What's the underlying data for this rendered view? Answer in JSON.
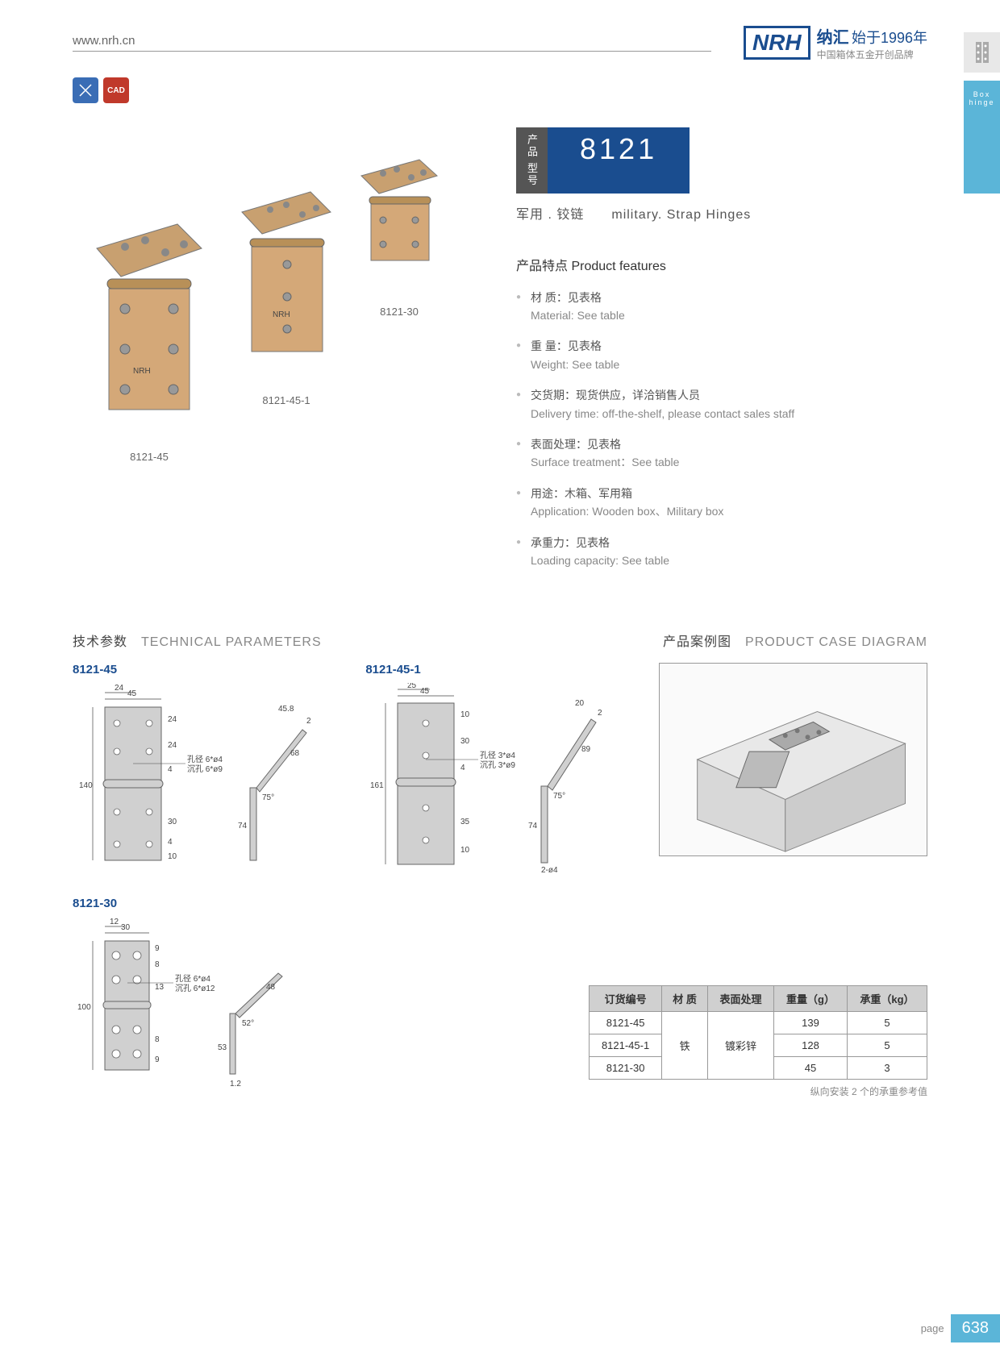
{
  "header": {
    "url": "www.nrh.cn",
    "logo": "NRH",
    "brand_cn": "纳汇",
    "brand_suffix": "始于1996年",
    "brand_sub": "中国箱体五金开创品牌"
  },
  "side": {
    "tab_cn": "箱体合页",
    "tab_en": "Box hinge"
  },
  "icons": {
    "cad": "CAD"
  },
  "model": {
    "label": "产品\n型号",
    "number": "8121",
    "subtitle_cn": "军用 . 铰链",
    "subtitle_en": "military. Strap Hinges"
  },
  "photo_labels": {
    "a": "8121-45",
    "b": "8121-45-1",
    "c": "8121-30"
  },
  "features": {
    "title": "产品特点 Product features",
    "items": [
      {
        "cn": "材  质：见表格",
        "en": "Material: See table"
      },
      {
        "cn": "重  量：见表格",
        "en": "Weight: See table"
      },
      {
        "cn": "交货期：现货供应，详洽销售人员",
        "en": "Delivery time: off-the-shelf, please contact sales staff"
      },
      {
        "cn": "表面处理：见表格",
        "en": "Surface treatment：See table"
      },
      {
        "cn": "用途：木箱、军用箱",
        "en": "Application: Wooden box、Military box"
      },
      {
        "cn": "承重力：见表格",
        "en": "Loading capacity: See table"
      }
    ]
  },
  "tech": {
    "title_cn": "技术参数",
    "title_en": "TECHNICAL PARAMETERS",
    "case_cn": "产品案例图",
    "case_en": "PRODUCT CASE DIAGRAM",
    "d1_title": "8121-45",
    "d2_title": "8121-45-1",
    "d3_title": "8121-30",
    "d1": {
      "w": "45",
      "w2": "24",
      "h": "140",
      "t1": "24",
      "t2": "24",
      "t3": "4",
      "b1": "30",
      "b2": "4",
      "b3": "10",
      "note1": "孔径 6*ø4",
      "note2": "沉孔 6*ø9",
      "side_h": "74",
      "side_top": "68",
      "side_w": "45.8",
      "side_t": "2",
      "angle": "75°"
    },
    "d2": {
      "w": "45",
      "w2": "25",
      "h": "161",
      "t1": "10",
      "t2": "30",
      "t3": "4",
      "b1": "35",
      "b2": "10",
      "note1": "孔径 3*ø4",
      "note2": "沉孔 3*ø9",
      "side_h": "74",
      "side_top": "89",
      "side_w": "20",
      "side_t": "2",
      "angle": "75°",
      "hole": "2-ø4"
    },
    "d3": {
      "w": "30",
      "w2": "12",
      "h": "100",
      "t1": "9",
      "t2": "8",
      "t3": "13",
      "b1": "8",
      "b2": "9",
      "note1": "孔径 6*ø4",
      "note2": "沉孔 6*ø12",
      "side_h": "53",
      "side_top": "48",
      "side_t": "1.2",
      "angle": "52°"
    }
  },
  "table": {
    "headers": [
      "订货编号",
      "材  质",
      "表面处理",
      "重量（g）",
      "承重（kg）"
    ],
    "material": "铁",
    "surface": "镀彩锌",
    "rows": [
      {
        "code": "8121-45",
        "weight": "139",
        "load": "5"
      },
      {
        "code": "8121-45-1",
        "weight": "128",
        "load": "5"
      },
      {
        "code": "8121-30",
        "weight": "45",
        "load": "3"
      }
    ],
    "note": "纵向安装 2 个的承重参考值"
  },
  "footer": {
    "label": "page",
    "num": "638"
  }
}
